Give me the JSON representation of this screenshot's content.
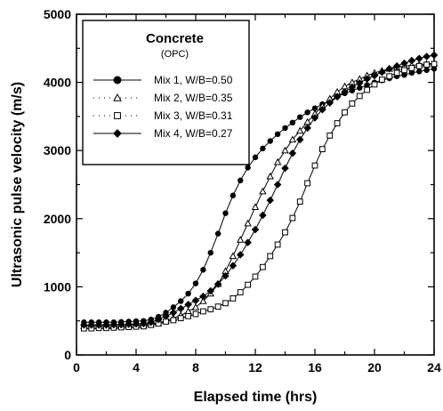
{
  "chart_data": {
    "type": "line",
    "xlabel": "Elapsed time (hrs)",
    "ylabel": "Ultrasonic pulse velocity (m/s)",
    "xlim": [
      0,
      24
    ],
    "ylim": [
      0,
      5000
    ],
    "xticks": [
      "0",
      "4",
      "8",
      "12",
      "16",
      "20",
      "24"
    ],
    "yticks": [
      "0",
      "1000",
      "2000",
      "3000",
      "4000",
      "5000"
    ],
    "grid": false,
    "legend": {
      "title": "Concrete",
      "subtitle": "(OPC)",
      "placement": "top-left"
    },
    "series": [
      {
        "name": "Mix 1, W/B=0.50",
        "marker": "filled-circle",
        "color": "#000000",
        "points": [
          [
            0.5,
            480
          ],
          [
            1,
            480
          ],
          [
            1.5,
            480
          ],
          [
            2,
            480
          ],
          [
            2.5,
            480
          ],
          [
            3,
            485
          ],
          [
            3.5,
            490
          ],
          [
            4,
            495
          ],
          [
            4.5,
            500
          ],
          [
            5,
            520
          ],
          [
            5.5,
            560
          ],
          [
            6,
            620
          ],
          [
            6.5,
            700
          ],
          [
            7,
            790
          ],
          [
            7.5,
            900
          ],
          [
            8,
            1050
          ],
          [
            8.5,
            1250
          ],
          [
            9,
            1500
          ],
          [
            9.5,
            1780
          ],
          [
            10,
            2080
          ],
          [
            10.5,
            2340
          ],
          [
            11,
            2560
          ],
          [
            11.5,
            2750
          ],
          [
            12,
            2900
          ],
          [
            12.5,
            3030
          ],
          [
            13,
            3140
          ],
          [
            13.5,
            3240
          ],
          [
            14,
            3330
          ],
          [
            14.5,
            3410
          ],
          [
            15,
            3490
          ],
          [
            15.5,
            3560
          ],
          [
            16,
            3620
          ],
          [
            16.5,
            3680
          ],
          [
            17,
            3730
          ],
          [
            17.5,
            3790
          ],
          [
            18,
            3840
          ],
          [
            18.5,
            3880
          ],
          [
            19,
            3920
          ],
          [
            19.5,
            3960
          ],
          [
            20,
            4000
          ],
          [
            20.5,
            4030
          ],
          [
            21,
            4060
          ],
          [
            21.5,
            4090
          ],
          [
            22,
            4110
          ],
          [
            22.5,
            4140
          ],
          [
            23,
            4160
          ],
          [
            23.5,
            4180
          ],
          [
            24,
            4200
          ]
        ]
      },
      {
        "name": "Mix 2, W/B=0.35",
        "marker": "open-triangle",
        "color": "#000000",
        "points": [
          [
            0.5,
            420
          ],
          [
            1,
            420
          ],
          [
            1.5,
            420
          ],
          [
            2,
            420
          ],
          [
            2.5,
            420
          ],
          [
            3,
            425
          ],
          [
            3.5,
            430
          ],
          [
            4,
            435
          ],
          [
            4.5,
            440
          ],
          [
            5,
            455
          ],
          [
            5.5,
            470
          ],
          [
            6,
            500
          ],
          [
            6.5,
            540
          ],
          [
            7,
            580
          ],
          [
            7.5,
            640
          ],
          [
            8,
            700
          ],
          [
            8.5,
            790
          ],
          [
            9,
            900
          ],
          [
            9.5,
            1040
          ],
          [
            10,
            1230
          ],
          [
            10.5,
            1450
          ],
          [
            11,
            1690
          ],
          [
            11.5,
            1930
          ],
          [
            12,
            2170
          ],
          [
            12.5,
            2400
          ],
          [
            13,
            2620
          ],
          [
            13.5,
            2830
          ],
          [
            14,
            3000
          ],
          [
            14.5,
            3160
          ],
          [
            15,
            3290
          ],
          [
            15.5,
            3420
          ],
          [
            16,
            3540
          ],
          [
            16.5,
            3650
          ],
          [
            17,
            3760
          ],
          [
            17.5,
            3860
          ],
          [
            18,
            3940
          ],
          [
            18.5,
            4000
          ],
          [
            19,
            4050
          ],
          [
            19.5,
            4100
          ],
          [
            20,
            4140
          ],
          [
            20.5,
            4170
          ],
          [
            21,
            4200
          ],
          [
            21.5,
            4220
          ],
          [
            22,
            4240
          ],
          [
            22.5,
            4250
          ],
          [
            23,
            4260
          ],
          [
            23.5,
            4270
          ],
          [
            24,
            4280
          ]
        ]
      },
      {
        "name": "Mix 3, W/B=0.31",
        "marker": "open-square",
        "color": "#000000",
        "points": [
          [
            0.5,
            390
          ],
          [
            1,
            390
          ],
          [
            1.5,
            395
          ],
          [
            2,
            395
          ],
          [
            2.5,
            400
          ],
          [
            3,
            405
          ],
          [
            3.5,
            410
          ],
          [
            4,
            415
          ],
          [
            4.5,
            420
          ],
          [
            5,
            440
          ],
          [
            5.5,
            460
          ],
          [
            6,
            490
          ],
          [
            6.5,
            510
          ],
          [
            7,
            540
          ],
          [
            7.5,
            570
          ],
          [
            8,
            600
          ],
          [
            8.5,
            640
          ],
          [
            9,
            670
          ],
          [
            9.5,
            710
          ],
          [
            10,
            760
          ],
          [
            10.5,
            830
          ],
          [
            11,
            920
          ],
          [
            11.5,
            1030
          ],
          [
            12,
            1150
          ],
          [
            12.5,
            1290
          ],
          [
            13,
            1450
          ],
          [
            13.5,
            1620
          ],
          [
            14,
            1800
          ],
          [
            14.5,
            2010
          ],
          [
            15,
            2250
          ],
          [
            15.5,
            2520
          ],
          [
            16,
            2780
          ],
          [
            16.5,
            3020
          ],
          [
            17,
            3220
          ],
          [
            17.5,
            3400
          ],
          [
            18,
            3560
          ],
          [
            18.5,
            3690
          ],
          [
            19,
            3800
          ],
          [
            19.5,
            3890
          ],
          [
            20,
            3970
          ],
          [
            20.5,
            4040
          ],
          [
            21,
            4090
          ],
          [
            21.5,
            4140
          ],
          [
            22,
            4180
          ],
          [
            22.5,
            4210
          ],
          [
            23,
            4240
          ],
          [
            23.5,
            4260
          ],
          [
            24,
            4270
          ]
        ]
      },
      {
        "name": "Mix 4, W/B=0.27",
        "marker": "filled-diamond",
        "color": "#000000",
        "points": [
          [
            0.5,
            440
          ],
          [
            1,
            440
          ],
          [
            1.5,
            440
          ],
          [
            2,
            440
          ],
          [
            2.5,
            445
          ],
          [
            3,
            445
          ],
          [
            3.5,
            450
          ],
          [
            4,
            455
          ],
          [
            4.5,
            460
          ],
          [
            5,
            480
          ],
          [
            5.5,
            520
          ],
          [
            6,
            570
          ],
          [
            6.5,
            620
          ],
          [
            7,
            680
          ],
          [
            7.5,
            740
          ],
          [
            8,
            800
          ],
          [
            8.5,
            860
          ],
          [
            9,
            940
          ],
          [
            9.5,
            1040
          ],
          [
            10,
            1160
          ],
          [
            10.5,
            1310
          ],
          [
            11,
            1470
          ],
          [
            11.5,
            1650
          ],
          [
            12,
            1840
          ],
          [
            12.5,
            2050
          ],
          [
            13,
            2270
          ],
          [
            13.5,
            2500
          ],
          [
            14,
            2740
          ],
          [
            14.5,
            2960
          ],
          [
            15,
            3160
          ],
          [
            15.5,
            3330
          ],
          [
            16,
            3480
          ],
          [
            16.5,
            3600
          ],
          [
            17,
            3700
          ],
          [
            17.5,
            3790
          ],
          [
            18,
            3860
          ],
          [
            18.5,
            3930
          ],
          [
            19,
            3990
          ],
          [
            19.5,
            4050
          ],
          [
            20,
            4100
          ],
          [
            20.5,
            4150
          ],
          [
            21,
            4200
          ],
          [
            21.5,
            4240
          ],
          [
            22,
            4280
          ],
          [
            22.5,
            4320
          ],
          [
            23,
            4350
          ],
          [
            23.5,
            4380
          ],
          [
            24,
            4400
          ]
        ]
      }
    ]
  }
}
